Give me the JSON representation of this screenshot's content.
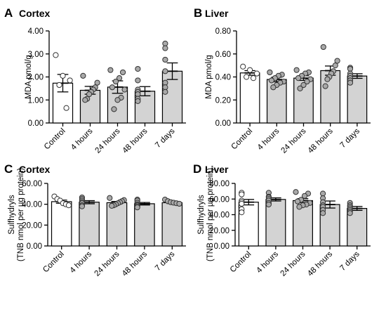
{
  "colors": {
    "control_bar": "#ffffff",
    "treatment_bar": "#d3d3d3",
    "control_point": "#ffffff",
    "treatment_point": "#a9a9a9",
    "axis": "#000000"
  },
  "chart_data": [
    {
      "type": "bar",
      "panel_letter": "A",
      "title": "Cortex",
      "ylabel": "MDA pmol/g",
      "ylim": [
        0,
        4
      ],
      "yticks": [
        "0.00",
        "1.00",
        "2.00",
        "3.00",
        "4.00"
      ],
      "ytick_values": [
        0,
        1,
        2,
        3,
        4
      ],
      "categories": [
        "Control",
        "4 hours",
        "24 hours",
        "48 hours",
        "7 days"
      ],
      "values": [
        1.73,
        1.42,
        1.56,
        1.38,
        2.25
      ],
      "sem": [
        0.38,
        0.17,
        0.27,
        0.2,
        0.36
      ],
      "points": [
        [
          2.95,
          2.05,
          1.85,
          1.65,
          0.65
        ],
        [
          2.05,
          1.75,
          1.55,
          1.45,
          1.35,
          1.25,
          1.05,
          1.0
        ],
        [
          2.3,
          2.2,
          1.95,
          1.8,
          1.55,
          1.45,
          1.1,
          1.0,
          0.6
        ],
        [
          2.35,
          1.85,
          1.45,
          1.35,
          1.25,
          1.05,
          0.95
        ],
        [
          3.45,
          3.25,
          2.75,
          2.25,
          1.75,
          1.55,
          1.35
        ]
      ]
    },
    {
      "type": "bar",
      "panel_letter": "B",
      "title": "Liver",
      "ylabel": "MDA pmol/g",
      "ylim": [
        0,
        0.8
      ],
      "yticks": [
        "0.00",
        "0.20",
        "0.40",
        "0.60",
        "0.80"
      ],
      "ytick_values": [
        0,
        0.2,
        0.4,
        0.6,
        0.8
      ],
      "categories": [
        "Control",
        "4 hours",
        "24 hours",
        "48 hours",
        "7 days"
      ],
      "values": [
        0.435,
        0.378,
        0.39,
        0.455,
        0.408
      ],
      "sem": [
        0.02,
        0.02,
        0.02,
        0.04,
        0.02
      ],
      "points": [
        [
          0.49,
          0.46,
          0.43,
          0.4,
          0.39
        ],
        [
          0.44,
          0.42,
          0.41,
          0.39,
          0.37,
          0.36,
          0.35,
          0.33,
          0.31
        ],
        [
          0.46,
          0.44,
          0.43,
          0.41,
          0.39,
          0.38,
          0.36,
          0.33,
          0.3
        ],
        [
          0.66,
          0.54,
          0.5,
          0.45,
          0.43,
          0.4,
          0.38,
          0.32
        ],
        [
          0.48,
          0.47,
          0.43,
          0.41,
          0.39,
          0.37,
          0.35
        ]
      ]
    },
    {
      "type": "bar",
      "panel_letter": "C",
      "title": "Cortex",
      "ylabel": "Sulfhydryls",
      "ylabel2": "(TNB nmol per µg protein)",
      "ylim": [
        0,
        60
      ],
      "yticks": [
        "0.00",
        "20.00",
        "40.00",
        "60.00"
      ],
      "ytick_values": [
        0,
        20,
        40,
        60
      ],
      "categories": [
        "Control",
        "4 hours",
        "24 hours",
        "48 hours",
        "7 days"
      ],
      "values": [
        42.5,
        42.0,
        41.5,
        40.5,
        41.5
      ],
      "sem": [
        1.5,
        1.5,
        1.2,
        1.2,
        0.8
      ],
      "points": [
        [
          47.5,
          45.0,
          43.5,
          41.0,
          40.0,
          39.0
        ],
        [
          46.5,
          45.0,
          43.5,
          42.0,
          41.0,
          39.0,
          38.0
        ],
        [
          46.0,
          44.0,
          43.0,
          42.0,
          41.0,
          40.0,
          39.0,
          38.5
        ],
        [
          44.5,
          43.5,
          41.5,
          40.0,
          39.0,
          38.0,
          37.0
        ],
        [
          44.5,
          43.0,
          42.0,
          41.5,
          41.0,
          40.5
        ]
      ]
    },
    {
      "type": "bar",
      "panel_letter": "D",
      "title": "Liver",
      "ylabel": "Sulfhydryls",
      "ylabel2": "(TNB nmol per µg protein)",
      "ylim": [
        0,
        80
      ],
      "yticks": [
        "0.00",
        "20.00",
        "40.00",
        "60.00",
        "80.00"
      ],
      "ytick_values": [
        0,
        20,
        40,
        60,
        80
      ],
      "categories": [
        "Control",
        "4 hours",
        "24 hours",
        "48 hours",
        "7 days"
      ],
      "values": [
        56.0,
        59.5,
        58.0,
        53.0,
        48.0
      ],
      "sem": [
        3.5,
        2.0,
        2.5,
        4.5,
        2.5
      ],
      "points": [
        [
          68.0,
          66.0,
          58.0,
          56.0,
          54.0,
          47.0,
          43.0
        ],
        [
          68.0,
          63.0,
          62.0,
          60.0,
          58.0,
          55.0,
          53.0
        ],
        [
          69.0,
          67.0,
          64.0,
          59.0,
          57.0,
          55.0,
          53.0,
          52.0,
          50.0
        ],
        [
          67.0,
          61.0,
          56.0,
          52.0,
          50.0,
          46.0,
          42.0
        ],
        [
          55.0,
          52.0,
          50.0,
          48.0,
          46.0,
          44.0,
          42.0
        ]
      ]
    }
  ]
}
